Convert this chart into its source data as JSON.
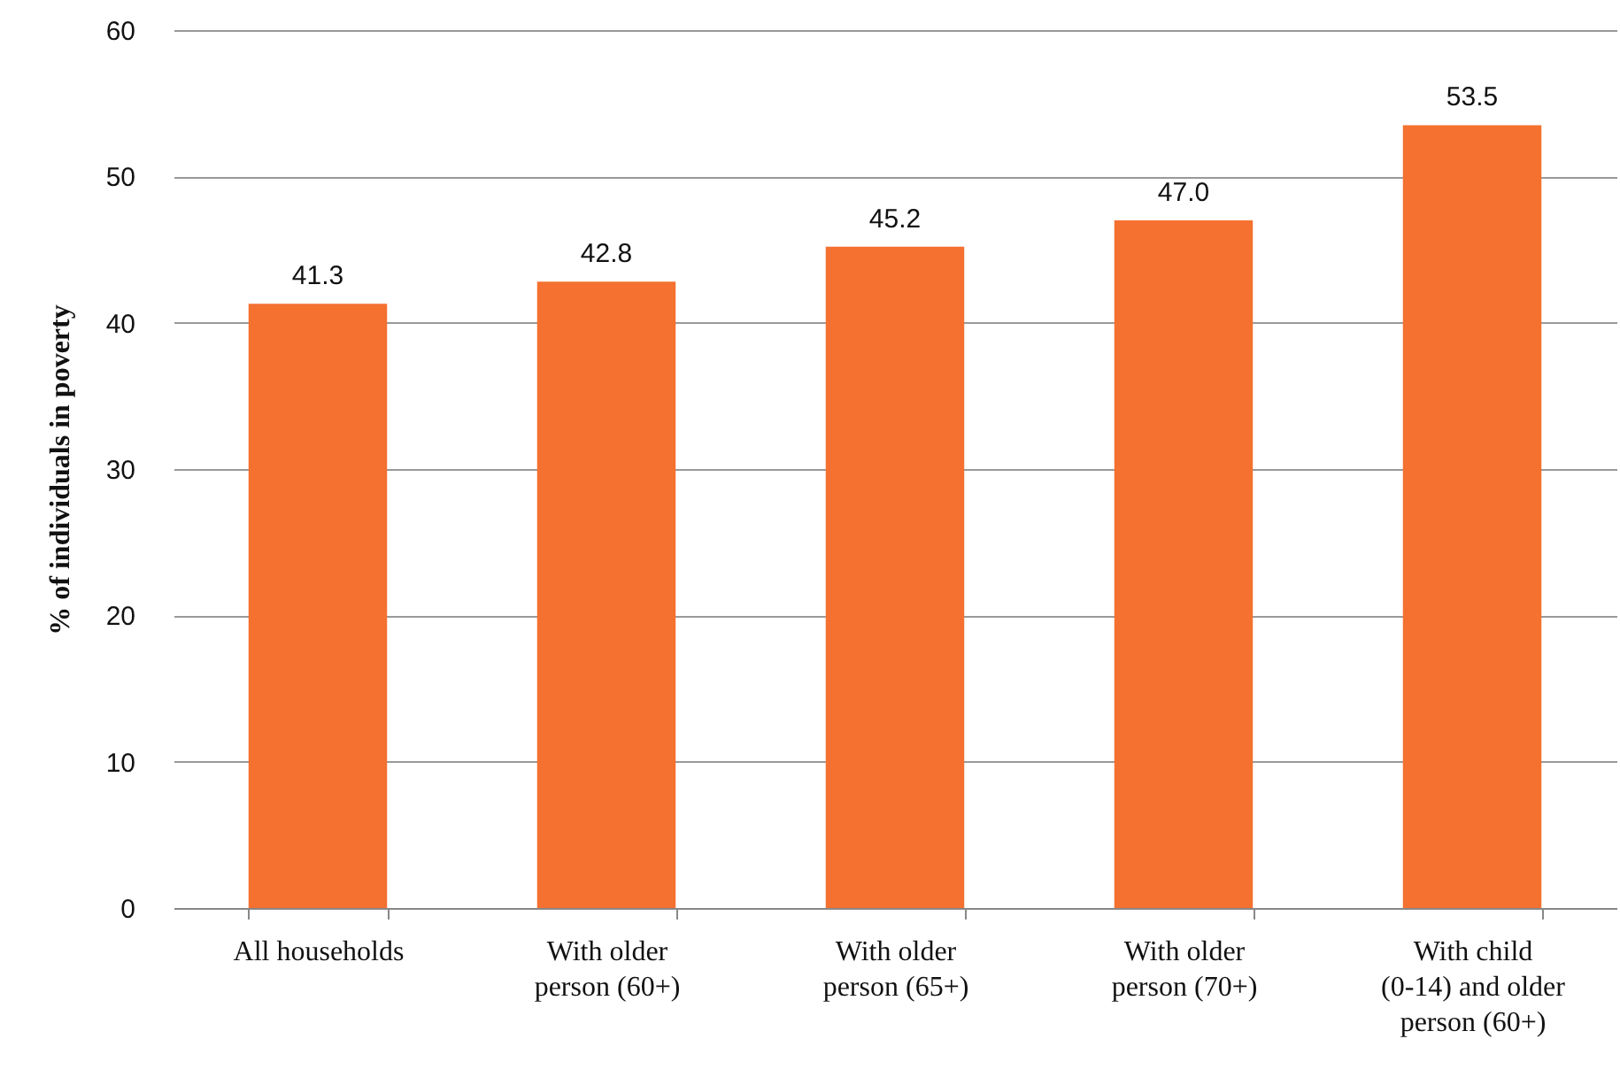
{
  "chart_data": {
    "type": "bar",
    "ylabel": "% of individuals in poverty",
    "categories": [
      "All households",
      "With older person (60+)",
      "With older person (65+)",
      "With older person (70+)",
      "With child (0-14) and older person (60+)"
    ],
    "values": [
      41.3,
      42.8,
      45.2,
      47.0,
      53.5
    ],
    "value_labels": [
      "41.3",
      "42.8",
      "45.2",
      "47.0",
      "53.5"
    ],
    "color": "#f47130",
    "ylim": [
      0,
      60
    ],
    "yticks": [
      0,
      10,
      20,
      30,
      40,
      50,
      60
    ],
    "grid": "y"
  }
}
